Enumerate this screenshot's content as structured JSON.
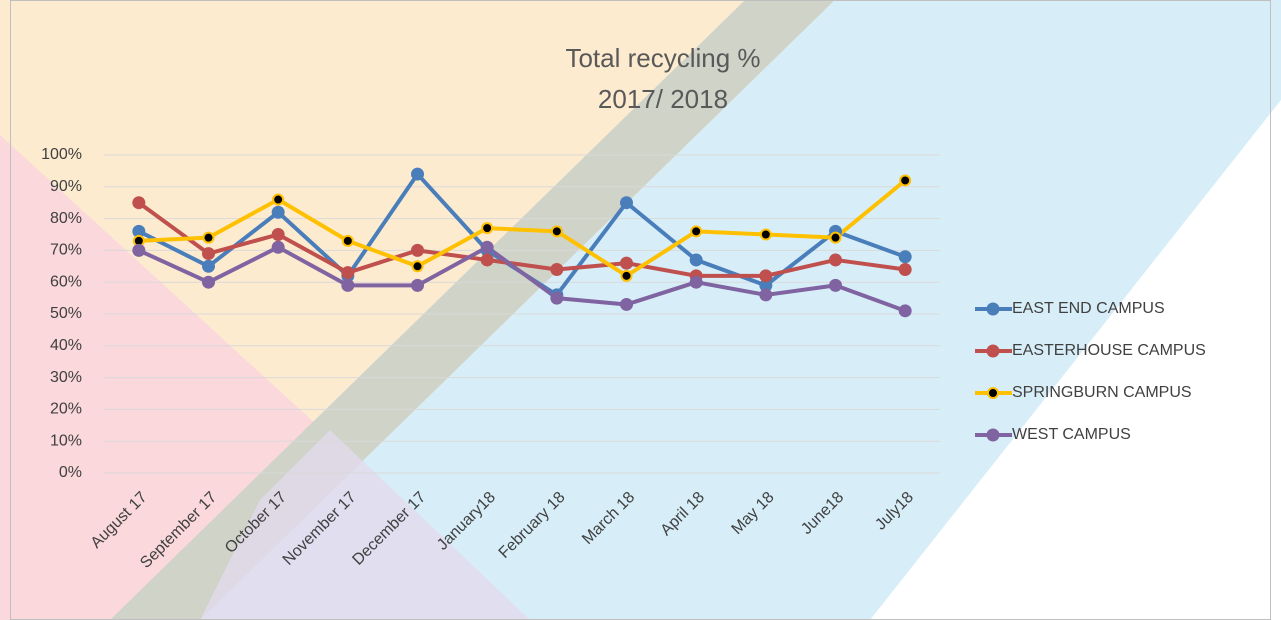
{
  "chart_data": {
    "type": "line",
    "title": "Total recycling %",
    "subtitle": "2017/ 2018",
    "categories": [
      "August 17",
      "September 17",
      "October 17",
      "November 17",
      "December 17",
      "January18",
      "February 18",
      "March 18",
      "April 18",
      "May 18",
      "June18",
      "July18"
    ],
    "series": [
      {
        "name": "EAST END CAMPUS",
        "color": "#4a7ebb",
        "values": [
          76,
          65,
          82,
          62,
          94,
          70,
          56,
          85,
          67,
          59,
          76,
          68
        ]
      },
      {
        "name": "EASTERHOUSE CAMPUS",
        "color": "#c0504d",
        "values": [
          85,
          69,
          75,
          63,
          70,
          67,
          64,
          66,
          62,
          62,
          67,
          64
        ]
      },
      {
        "name": "SPRINGBURN CAMPUS",
        "color": "#ffc000",
        "marker_color": "#000000",
        "values": [
          73,
          74,
          86,
          73,
          65,
          77,
          76,
          62,
          76,
          75,
          74,
          92
        ]
      },
      {
        "name": "WEST CAMPUS",
        "color": "#8064a2",
        "values": [
          70,
          60,
          71,
          59,
          59,
          71,
          55,
          53,
          60,
          56,
          59,
          51
        ]
      }
    ],
    "ylim": [
      0,
      100
    ],
    "yticks": [
      {
        "value": 0,
        "label": "0%"
      },
      {
        "value": 10,
        "label": "10%"
      },
      {
        "value": 20,
        "label": "20%"
      },
      {
        "value": 30,
        "label": "30%"
      },
      {
        "value": 40,
        "label": "40%"
      },
      {
        "value": 50,
        "label": "50%"
      },
      {
        "value": 60,
        "label": "60%"
      },
      {
        "value": 70,
        "label": "70%"
      },
      {
        "value": 80,
        "label": "80%"
      },
      {
        "value": 90,
        "label": "90%"
      },
      {
        "value": 100,
        "label": "100%"
      }
    ],
    "grid": true,
    "legend": "right"
  }
}
